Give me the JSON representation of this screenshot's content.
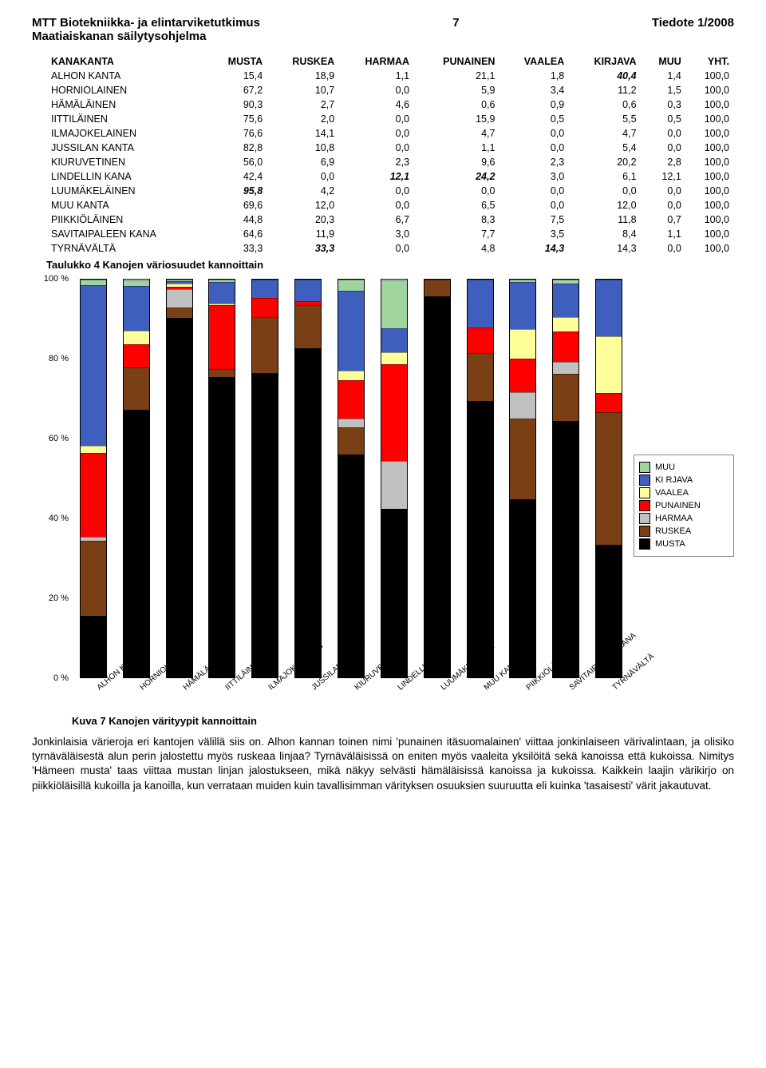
{
  "header": {
    "left": "MTT Biotekniikka- ja elintarviketutkimus",
    "page": "7",
    "right": "Tiedote 1/2008",
    "sub": "Maatiaiskanan säilytysohjelma"
  },
  "table": {
    "columns": [
      "KANAKANTA",
      "MUSTA",
      "RUSKEA",
      "HARMAA",
      "PUNAINEN",
      "VAALEA",
      "KIRJAVA",
      "MUU",
      "YHT."
    ],
    "rows": [
      {
        "name": "ALHON KANTA",
        "vals": [
          "15,4",
          "18,9",
          "1,1",
          "21,1",
          "1,8",
          "40,4",
          "1,4",
          "100,0"
        ],
        "boldIdx": [
          5
        ]
      },
      {
        "name": "HORNIOLAINEN",
        "vals": [
          "67,2",
          "10,7",
          "0,0",
          "5,9",
          "3,4",
          "11,2",
          "1,5",
          "100,0"
        ]
      },
      {
        "name": "HÄMÄLÄINEN",
        "vals": [
          "90,3",
          "2,7",
          "4,6",
          "0,6",
          "0,9",
          "0,6",
          "0,3",
          "100,0"
        ]
      },
      {
        "name": "IITTILÄINEN",
        "vals": [
          "75,6",
          "2,0",
          "0,0",
          "15,9",
          "0,5",
          "5,5",
          "0,5",
          "100,0"
        ]
      },
      {
        "name": "ILMAJOKELAINEN",
        "vals": [
          "76,6",
          "14,1",
          "0,0",
          "4,7",
          "0,0",
          "4,7",
          "0,0",
          "100,0"
        ]
      },
      {
        "name": "JUSSILAN KANTA",
        "vals": [
          "82,8",
          "10,8",
          "0,0",
          "1,1",
          "0,0",
          "5,4",
          "0,0",
          "100,0"
        ]
      },
      {
        "name": "KIURUVETINEN",
        "vals": [
          "56,0",
          "6,9",
          "2,3",
          "9,6",
          "2,3",
          "20,2",
          "2,8",
          "100,0"
        ]
      },
      {
        "name": "LINDELLIN KANA",
        "vals": [
          "42,4",
          "0,0",
          "12,1",
          "24,2",
          "3,0",
          "6,1",
          "12,1",
          "100,0"
        ],
        "boldIdx": [
          2,
          3
        ]
      },
      {
        "name": "LUUMÄKELÄINEN",
        "vals": [
          "95,8",
          "4,2",
          "0,0",
          "0,0",
          "0,0",
          "0,0",
          "0,0",
          "100,0"
        ],
        "boldIdx": [
          0
        ]
      },
      {
        "name": "MUU KANTA",
        "vals": [
          "69,6",
          "12,0",
          "0,0",
          "6,5",
          "0,0",
          "12,0",
          "0,0",
          "100,0"
        ]
      },
      {
        "name": "PIIKKIÖLÄINEN",
        "vals": [
          "44,8",
          "20,3",
          "6,7",
          "8,3",
          "7,5",
          "11,8",
          "0,7",
          "100,0"
        ]
      },
      {
        "name": "SAVITAIPALEEN KANA",
        "vals": [
          "64,6",
          "11,9",
          "3,0",
          "7,7",
          "3,5",
          "8,4",
          "1,1",
          "100,0"
        ]
      },
      {
        "name": "TYRNÄVÄLTÄ",
        "vals": [
          "33,3",
          "33,3",
          "0,0",
          "4,8",
          "14,3",
          "14,3",
          "0,0",
          "100,0"
        ],
        "boldIdx": [
          1,
          4
        ]
      }
    ],
    "caption": "Taulukko 4  Kanojen väriosuudet kannoittain"
  },
  "chart": {
    "y_ticks": [
      "0 %",
      "20 %",
      "40 %",
      "60 %",
      "80 %",
      "100 %"
    ],
    "categories": [
      "ALHON KANTA",
      "HORNIOLAINEN",
      "HÄMÄLÄINEN",
      "IITTILÄINEN",
      "ILMAJOKELAINEN",
      "JUSSILAN KANTA",
      "KIURUVETINEN",
      "LINDELLIN KANA",
      "LUUMÄKELÄINEN",
      "MUU KANTA",
      "PIIKKIÖLÄINEN",
      "SAVITAIPALEEN KANA",
      "TYRNÄVÄLTÄ"
    ],
    "series_order": [
      "MUSTA",
      "RUSKEA",
      "HARMAA",
      "PUNAINEN",
      "VAALEA",
      "KIRJAVA",
      "MUU"
    ],
    "colors": {
      "MUSTA": "#000000",
      "RUSKEA": "#7b3f16",
      "HARMAA": "#c0c0c0",
      "PUNAINEN": "#ff0000",
      "VAALEA": "#ffff99",
      "KIRJAVA": "#3f5fbf",
      "MUU": "#9fd49f"
    },
    "legend_order": [
      "MUU",
      "KI RJAVA",
      "VAALEA",
      "PUNAINEN",
      "HARMAA",
      "RUSKEA",
      "MUSTA"
    ],
    "data": [
      [
        15.4,
        18.9,
        1.1,
        21.1,
        1.8,
        40.4,
        1.4
      ],
      [
        67.2,
        10.7,
        0.0,
        5.9,
        3.4,
        11.2,
        1.5
      ],
      [
        90.3,
        2.7,
        4.6,
        0.6,
        0.9,
        0.6,
        0.3
      ],
      [
        75.6,
        2.0,
        0.0,
        15.9,
        0.5,
        5.5,
        0.5
      ],
      [
        76.6,
        14.1,
        0.0,
        4.7,
        0.0,
        4.7,
        0.0
      ],
      [
        82.8,
        10.8,
        0.0,
        1.1,
        0.0,
        5.4,
        0.0
      ],
      [
        56.0,
        6.9,
        2.3,
        9.6,
        2.3,
        20.2,
        2.8
      ],
      [
        42.4,
        0.0,
        12.1,
        24.2,
        3.0,
        6.1,
        12.1
      ],
      [
        95.8,
        4.2,
        0.0,
        0.0,
        0.0,
        0.0,
        0.0
      ],
      [
        69.6,
        12.0,
        0.0,
        6.5,
        0.0,
        12.0,
        0.0
      ],
      [
        44.8,
        20.3,
        6.7,
        8.3,
        7.5,
        11.8,
        0.7
      ],
      [
        64.6,
        11.9,
        3.0,
        7.7,
        3.5,
        8.4,
        1.1
      ],
      [
        33.3,
        33.3,
        0.0,
        4.8,
        14.3,
        14.3,
        0.0
      ]
    ],
    "caption": "Kuva 7  Kanojen värityypit kannoittain"
  },
  "body_text": "Jonkinlaisia värieroja eri kantojen välillä siis on. Alhon kannan toinen nimi 'punainen itäsuomalainen' viittaa jonkinlaiseen värivalintaan, ja olisiko tyrnäväläisestä alun perin jalostettu myös ruskeaa linjaa? Tyrnäväläisissä on eniten myös vaaleita yksilöitä sekä kanoissa että kukoissa. Nimitys 'Hämeen musta' taas viittaa mustan linjan jalostukseen, mikä näkyy selvästi hämäläisissä kanoissa ja kukoissa. Kaikkein laajin värikirjo on piikkiöläisillä kukoilla ja kanoilla, kun verrataan muiden kuin tavallisimman värityksen osuuksien suuruutta eli kuinka 'tasaisesti' värit jakautuvat."
}
